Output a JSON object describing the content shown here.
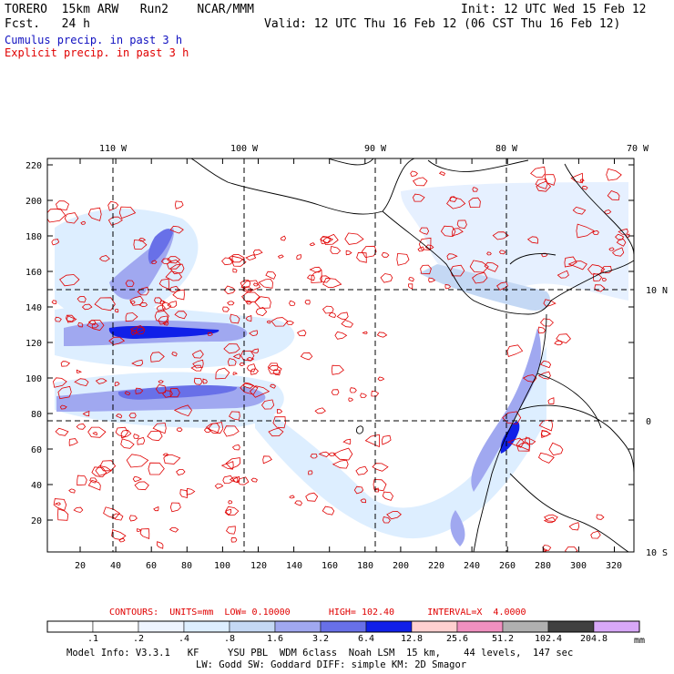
{
  "header": {
    "title_left": "TORERO  15km ARW   Run2    NCAR/MMM",
    "init": "Init: 12 UTC Wed 15 Feb 12",
    "fcst": "Fcst.   24 h",
    "valid": "Valid: 12 UTC Thu 16 Feb 12 (06 CST Thu 16 Feb 12)",
    "cumulus": "Cumulus precip. in past 3 h",
    "explicit": "Explicit precip. in past 3 h"
  },
  "colors": {
    "cumulus_text": "#1010c0",
    "explicit_text": "#e00000",
    "contour": "#e00000"
  },
  "map": {
    "lon_labels": [
      "110 W",
      "100 W",
      "90 W",
      "80 W",
      "70 W"
    ],
    "lat_labels": [
      "10 N",
      "0",
      "10 S"
    ],
    "y_ticks": [
      "220",
      "200",
      "180",
      "160",
      "140",
      "120",
      "100",
      "80",
      "60",
      "40",
      "20"
    ],
    "x_ticks": [
      "20",
      "40",
      "60",
      "80",
      "100",
      "120",
      "140",
      "160",
      "180",
      "200",
      "220",
      "240",
      "260",
      "280",
      "300",
      "320"
    ]
  },
  "contour_info": {
    "label": "CONTOURS:  UNITS=mm  LOW= 0.10000       HIGH= 102.40      INTERVAL=X  4.0000"
  },
  "colorbar": {
    "labels": [
      ".1",
      ".2",
      ".4",
      ".8",
      "1.6",
      "3.2",
      "6.4",
      "12.8",
      "25.6",
      "51.2",
      "102.4",
      "204.8"
    ],
    "unit": "mm",
    "colors": [
      "#ffffff",
      "#ffffff",
      "#eef4ff",
      "#ddeeff",
      "#c4d8f4",
      "#a0a8f0",
      "#6870e8",
      "#1020e8",
      "#ffd0d0",
      "#f090c0",
      "#b0b0b0",
      "#404040",
      "#d8a8f8"
    ]
  },
  "footer": {
    "line1": "Model Info: V3.3.1   KF     YSU PBL  WDM 6class  Noah LSM  15 km,    44 levels,  147 sec",
    "line2": "LW: Godd SW: Goddard DIFF: simple KM: 2D Smagor"
  }
}
